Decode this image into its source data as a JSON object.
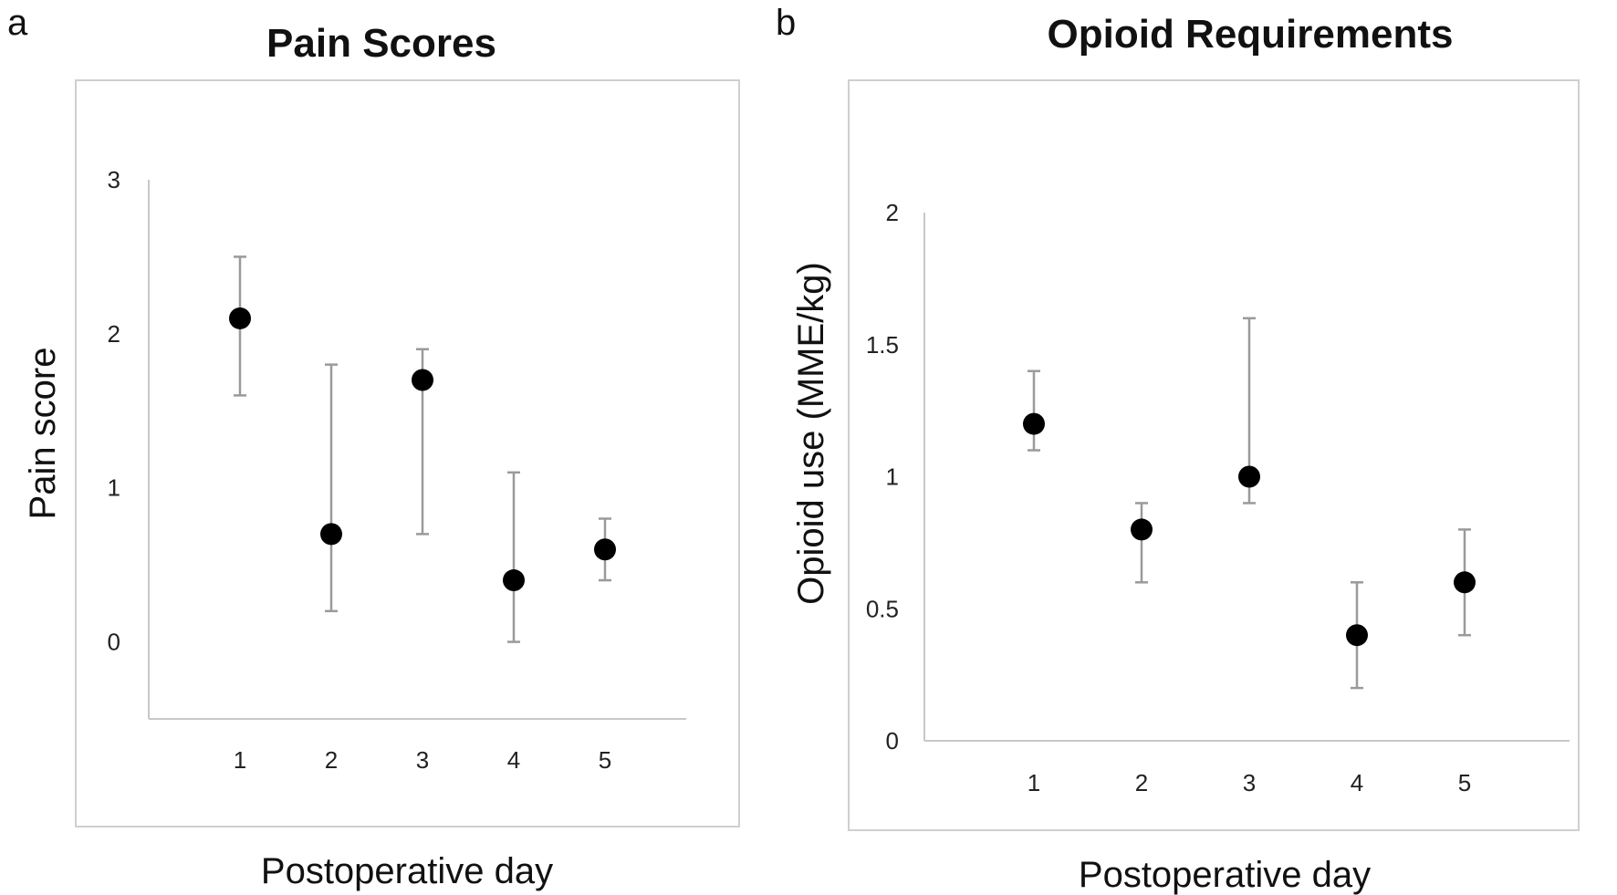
{
  "panels": {
    "a": {
      "letter": "a"
    },
    "b": {
      "letter": "b"
    }
  },
  "chart_data": [
    {
      "type": "scatter",
      "title": "Pain Scores",
      "xlabel": "Postoperative day",
      "ylabel": "Pain score",
      "categories": [
        "1",
        "2",
        "3",
        "4",
        "5"
      ],
      "y_ticks": [
        "0",
        "1",
        "2",
        "3"
      ],
      "ylim": [
        -0.5,
        3
      ],
      "grid": false,
      "series": [
        {
          "values": [
            2.1,
            0.7,
            1.7,
            0.4,
            0.6
          ],
          "err_low": [
            1.6,
            0.2,
            0.7,
            0.0,
            0.4
          ],
          "err_high": [
            2.5,
            1.8,
            1.9,
            1.1,
            0.8
          ]
        }
      ]
    },
    {
      "type": "scatter",
      "title": "Opioid Requirements",
      "xlabel": "Postoperative day",
      "ylabel": "Opioid use (MME/kg)",
      "categories": [
        "1",
        "2",
        "3",
        "4",
        "5"
      ],
      "y_ticks": [
        "0",
        "0.5",
        "1",
        "1.5",
        "2"
      ],
      "ylim": [
        0,
        2
      ],
      "grid": false,
      "series": [
        {
          "values": [
            1.2,
            0.8,
            1.0,
            0.4,
            0.6
          ],
          "err_low": [
            1.1,
            0.6,
            0.9,
            0.2,
            0.4
          ],
          "err_high": [
            1.4,
            0.9,
            1.6,
            0.6,
            0.8
          ]
        }
      ]
    }
  ]
}
